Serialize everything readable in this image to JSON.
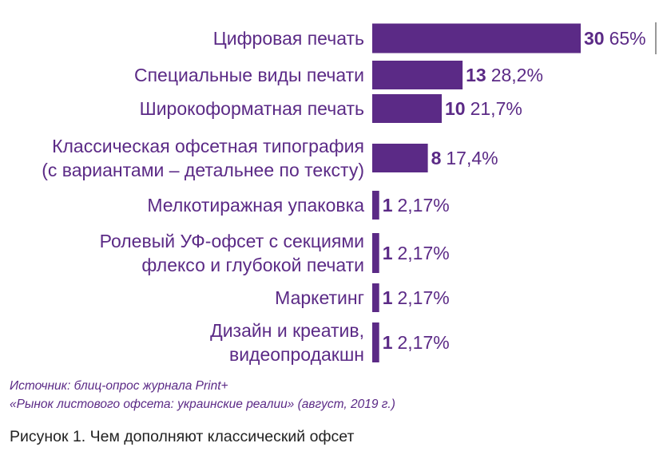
{
  "chart_data": {
    "type": "bar",
    "orientation": "horizontal",
    "categories": [
      [
        "Цифровая печать"
      ],
      [
        "Специальные виды печати"
      ],
      [
        "Широкоформатная печать"
      ],
      [
        "Классическая офсетная типография",
        "(с вариантами – детальнее по тексту)"
      ],
      [
        "Мелкотиражная упаковка"
      ],
      [
        "Ролевый УФ-офсет с секциями",
        "флексо и глубокой печати"
      ],
      [
        "Маркетинг"
      ],
      [
        "Дизайн и креатив,",
        "видеопродакшн"
      ]
    ],
    "values": [
      30,
      13,
      10,
      8,
      1,
      1,
      1,
      1
    ],
    "percent_labels": [
      "65%",
      "28,2%",
      "21,7%",
      "17,4%",
      "2,17%",
      "2,17%",
      "2,17%",
      "2,17%"
    ],
    "bar_color": "#5b2a86",
    "xlim": [
      0,
      30
    ],
    "grid": false,
    "legend": "none"
  },
  "source": {
    "line1": "Источник: блиц-опрос журнала Print+",
    "line2": "«Рынок листового офсета: украинские реалии» (август, 2019 г.)"
  },
  "caption": "Рисунок 1. Чем дополняют классический офсет"
}
